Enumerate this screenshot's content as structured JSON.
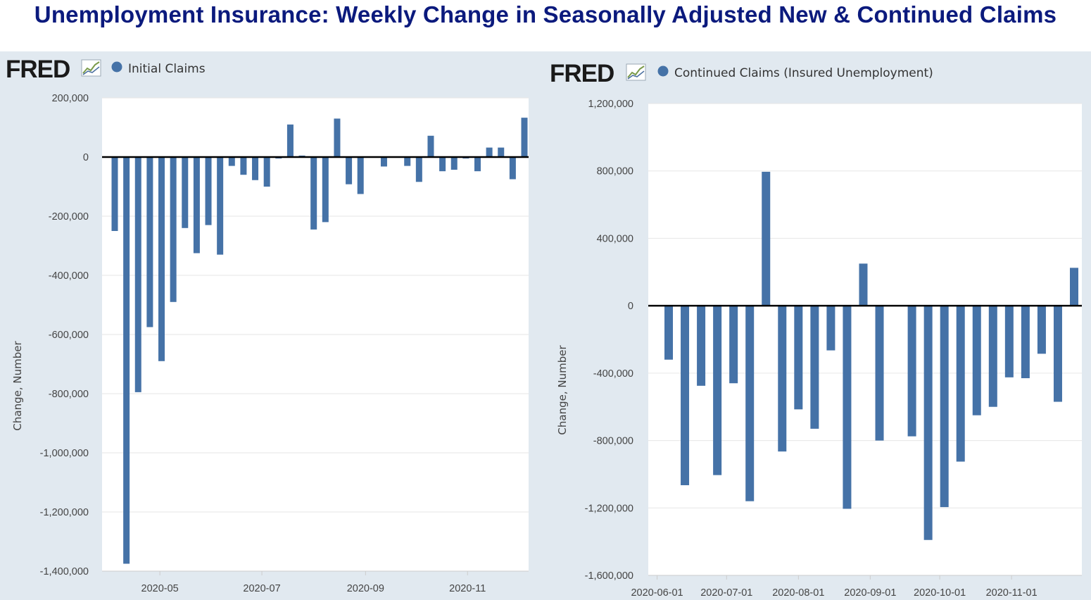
{
  "page_title": "Unemployment Insurance: Weekly Change in Seasonally Adjusted New & Continued Claims",
  "colors": {
    "bar": "#4572a7",
    "title": "#0b1a7d",
    "panel_bg": "#e1e9f0",
    "plot_bg": "#ffffff"
  },
  "left": {
    "logo": "FRED",
    "legend": "Initial Claims"
  },
  "right": {
    "logo": "FRED",
    "legend": "Continued Claims (Insured Unemployment)"
  },
  "chart_data": [
    {
      "type": "bar",
      "series": [
        {
          "name": "Initial Claims",
          "x": [
            "2020-04-04",
            "2020-04-11",
            "2020-04-18",
            "2020-04-25",
            "2020-05-02",
            "2020-05-09",
            "2020-05-16",
            "2020-05-23",
            "2020-05-30",
            "2020-06-06",
            "2020-06-13",
            "2020-06-20",
            "2020-06-27",
            "2020-07-04",
            "2020-07-11",
            "2020-07-18",
            "2020-07-25",
            "2020-08-01",
            "2020-08-08",
            "2020-08-15",
            "2020-08-22",
            "2020-08-29",
            "2020-09-05",
            "2020-09-12",
            "2020-09-19",
            "2020-09-26",
            "2020-10-03",
            "2020-10-10",
            "2020-10-17",
            "2020-10-24",
            "2020-10-31",
            "2020-11-07",
            "2020-11-14",
            "2020-11-21",
            "2020-11-28",
            "2020-12-05"
          ],
          "values": [
            -250000,
            -1375000,
            -795000,
            -575000,
            -690000,
            -490000,
            -240000,
            -325000,
            -230000,
            -330000,
            -30000,
            -60000,
            -78000,
            -100000,
            -5000,
            110000,
            5000,
            -245000,
            -220000,
            130000,
            -92000,
            -125000,
            0,
            -32000,
            0,
            -30000,
            -84000,
            72000,
            -48000,
            -43000,
            -5000,
            -48000,
            32000,
            32000,
            -75000,
            133000
          ]
        }
      ],
      "xlabel": "",
      "ylabel": "Change, Number",
      "ylim": [
        -1400000,
        200000
      ],
      "yticks": [
        200000,
        0,
        -200000,
        -400000,
        -600000,
        -800000,
        -1000000,
        -1200000,
        -1400000
      ],
      "ytick_labels": [
        "200,000",
        "0",
        "-200,000",
        "-400,000",
        "-600,000",
        "-800,000",
        "-1,000,000",
        "-1,200,000",
        "-1,400,000"
      ],
      "xtick_dates": [
        "2020-05-01",
        "2020-07-01",
        "2020-09-01",
        "2020-11-01"
      ],
      "xtick_labels": [
        "2020-05",
        "2020-07",
        "2020-09",
        "2020-11"
      ],
      "grid": true,
      "legend": "top-left"
    },
    {
      "type": "bar",
      "series": [
        {
          "name": "Continued Claims (Insured Unemployment)",
          "x": [
            "2020-06-06",
            "2020-06-13",
            "2020-06-20",
            "2020-06-27",
            "2020-07-04",
            "2020-07-11",
            "2020-07-18",
            "2020-07-25",
            "2020-08-01",
            "2020-08-08",
            "2020-08-15",
            "2020-08-22",
            "2020-08-29",
            "2020-09-05",
            "2020-09-12",
            "2020-09-19",
            "2020-09-26",
            "2020-10-03",
            "2020-10-10",
            "2020-10-17",
            "2020-10-24",
            "2020-10-31",
            "2020-11-07",
            "2020-11-14",
            "2020-11-21",
            "2020-11-28"
          ],
          "values": [
            -320000,
            -1065000,
            -475000,
            -1005000,
            -460000,
            -1160000,
            795000,
            -865000,
            -615000,
            -730000,
            -265000,
            -1205000,
            250000,
            -800000,
            0,
            -775000,
            -1390000,
            -1195000,
            -925000,
            -650000,
            -600000,
            -425000,
            -430000,
            -285000,
            -570000,
            225000
          ]
        }
      ],
      "xlabel": "",
      "ylabel": "Change, Number",
      "ylim": [
        -1600000,
        1200000
      ],
      "yticks": [
        1200000,
        800000,
        400000,
        0,
        -400000,
        -800000,
        -1200000,
        -1600000
      ],
      "ytick_labels": [
        "1,200,000",
        "800,000",
        "400,000",
        "0",
        "-400,000",
        "-800,000",
        "-1,200,000",
        "-1,600,000"
      ],
      "xtick_dates": [
        "2020-06-01",
        "2020-07-01",
        "2020-08-01",
        "2020-09-01",
        "2020-10-01",
        "2020-11-01"
      ],
      "xtick_labels": [
        "2020-06-01",
        "2020-07-01",
        "2020-08-01",
        "2020-09-01",
        "2020-10-01",
        "2020-11-01"
      ],
      "grid": true,
      "legend": "top-left"
    }
  ]
}
